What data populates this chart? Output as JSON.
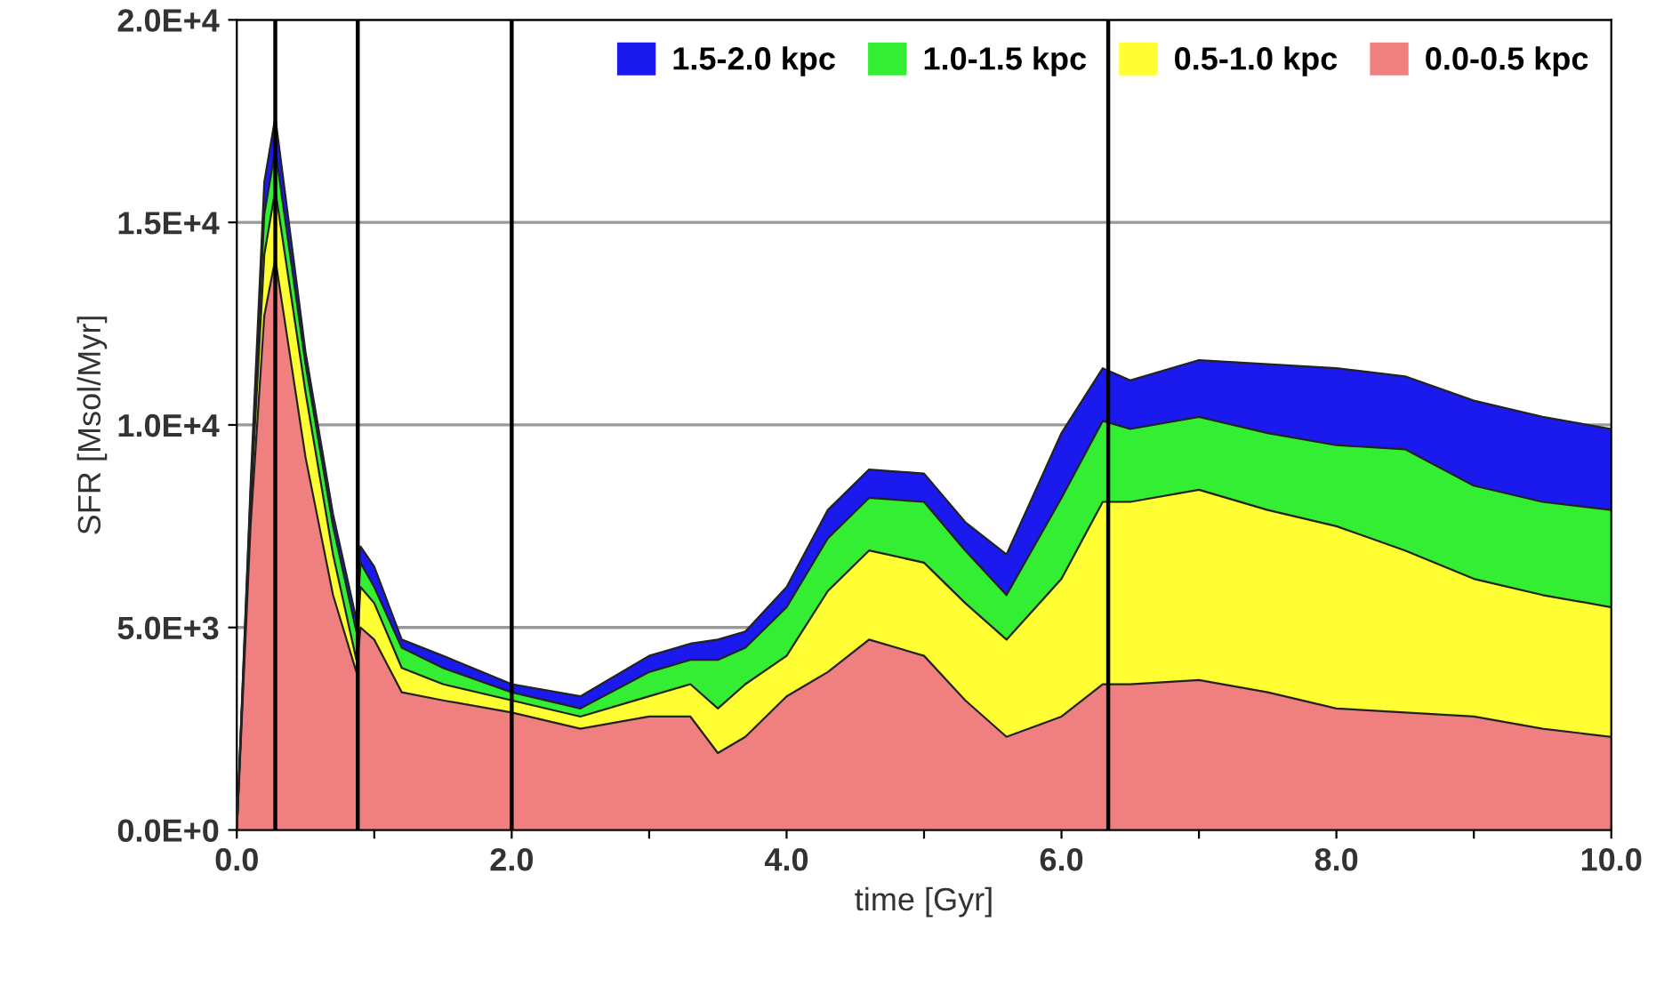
{
  "chart_data": {
    "type": "area",
    "stacked": true,
    "xlabel": "time [Gyr]",
    "ylabel": "SFR [Msol/Myr]",
    "x": [
      0,
      0.1,
      0.2,
      0.28,
      0.5,
      0.7,
      0.87,
      0.9,
      1.0,
      1.2,
      1.5,
      2.0,
      2.5,
      3.0,
      3.3,
      3.5,
      3.7,
      4.0,
      4.3,
      4.6,
      5.0,
      5.3,
      5.6,
      6.0,
      6.3,
      6.5,
      7.0,
      7.5,
      8.0,
      8.5,
      9.0,
      9.5,
      10.0
    ],
    "series": [
      {
        "name": "0.0-0.5 kpc",
        "color": "#f08080",
        "values": [
          0,
          7500,
          12700,
          14100,
          9200,
          5800,
          3900,
          5000,
          4700,
          3400,
          3200,
          2900,
          2500,
          2800,
          2800,
          1900,
          2300,
          3300,
          3900,
          4700,
          4300,
          3200,
          2300,
          2800,
          3600,
          3600,
          3700,
          3400,
          3000,
          2900,
          2800,
          2500,
          2300
        ]
      },
      {
        "name": "0.5-1.0 kpc",
        "color": "#ffff33",
        "values": [
          0,
          500,
          1500,
          1700,
          1600,
          1000,
          300,
          1000,
          900,
          600,
          400,
          300,
          300,
          500,
          800,
          1100,
          1300,
          1000,
          2000,
          2200,
          2300,
          2400,
          2400,
          3400,
          4500,
          4500,
          4700,
          4500,
          4500,
          4000,
          3400,
          3300,
          3200
        ]
      },
      {
        "name": "1.0-1.5 kpc",
        "color": "#33ee33",
        "values": [
          0,
          300,
          1000,
          1000,
          700,
          700,
          700,
          600,
          400,
          500,
          400,
          200,
          200,
          600,
          600,
          1200,
          900,
          1200,
          1300,
          1300,
          1500,
          1300,
          1100,
          2000,
          2000,
          1800,
          1800,
          1900,
          2000,
          2500,
          2300,
          2300,
          2400
        ]
      },
      {
        "name": "1.5-2.0 kpc",
        "color": "#1a1aee",
        "values": [
          0,
          200,
          800,
          800,
          300,
          300,
          300,
          400,
          500,
          200,
          300,
          200,
          300,
          400,
          400,
          500,
          400,
          500,
          700,
          700,
          700,
          700,
          1000,
          1600,
          1300,
          1200,
          1400,
          1700,
          1900,
          1800,
          2100,
          2100,
          2000
        ]
      }
    ],
    "xlim": [
      0,
      10
    ],
    "ylim": [
      0,
      20000
    ],
    "xticks": [
      {
        "value": 0,
        "label": "0.0"
      },
      {
        "value": 1,
        "label": null
      },
      {
        "value": 2,
        "label": "2.0"
      },
      {
        "value": 3,
        "label": null
      },
      {
        "value": 4,
        "label": "4.0"
      },
      {
        "value": 5,
        "label": null
      },
      {
        "value": 6,
        "label": "6.0"
      },
      {
        "value": 7,
        "label": null
      },
      {
        "value": 8,
        "label": "8.0"
      },
      {
        "value": 9,
        "label": null
      },
      {
        "value": 10,
        "label": "10.0"
      }
    ],
    "yticks": [
      {
        "value": 0,
        "label": "0.0E+0"
      },
      {
        "value": 5000,
        "label": "5.0E+3"
      },
      {
        "value": 10000,
        "label": "1.0E+4"
      },
      {
        "value": 15000,
        "label": "1.5E+4"
      },
      {
        "value": 20000,
        "label": "2.0E+4"
      }
    ],
    "ref_lines": [
      {
        "axis": "x",
        "value": 0.28,
        "color": "#000000"
      },
      {
        "axis": "x",
        "value": 0.88,
        "color": "#000000"
      },
      {
        "axis": "x",
        "value": 2.0,
        "color": "#000000"
      },
      {
        "axis": "x",
        "value": 6.34,
        "color": "#000000"
      }
    ],
    "grid": "y",
    "legend": "top right"
  }
}
